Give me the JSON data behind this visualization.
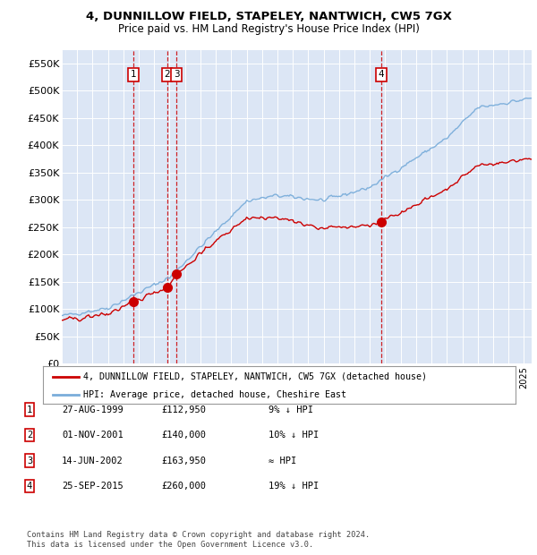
{
  "title": "4, DUNNILLOW FIELD, STAPELEY, NANTWICH, CW5 7GX",
  "subtitle": "Price paid vs. HM Land Registry's House Price Index (HPI)",
  "background_color": "#dce6f5",
  "plot_bg_color": "#dce6f5",
  "ylim": [
    0,
    575000
  ],
  "yticks": [
    0,
    50000,
    100000,
    150000,
    200000,
    250000,
    300000,
    350000,
    400000,
    450000,
    500000,
    550000
  ],
  "ytick_labels": [
    "£0",
    "£50K",
    "£100K",
    "£150K",
    "£200K",
    "£250K",
    "£300K",
    "£350K",
    "£400K",
    "£450K",
    "£500K",
    "£550K"
  ],
  "sale_dates_num": [
    1999.65,
    2001.83,
    2002.45,
    2015.73
  ],
  "sale_prices": [
    112950,
    140000,
    163950,
    260000
  ],
  "sale_labels": [
    "1",
    "2",
    "3",
    "4"
  ],
  "vline_color": "#cc0000",
  "sale_marker_color": "#cc0000",
  "hpi_color": "#7aadda",
  "price_line_color": "#cc0000",
  "legend_property": "4, DUNNILLOW FIELD, STAPELEY, NANTWICH, CW5 7GX (detached house)",
  "legend_hpi": "HPI: Average price, detached house, Cheshire East",
  "table_data": [
    [
      "1",
      "27-AUG-1999",
      "£112,950",
      "9% ↓ HPI"
    ],
    [
      "2",
      "01-NOV-2001",
      "£140,000",
      "10% ↓ HPI"
    ],
    [
      "3",
      "14-JUN-2002",
      "£163,950",
      "≈ HPI"
    ],
    [
      "4",
      "25-SEP-2015",
      "£260,000",
      "19% ↓ HPI"
    ]
  ],
  "footer": "Contains HM Land Registry data © Crown copyright and database right 2024.\nThis data is licensed under the Open Government Licence v3.0.",
  "xmin": 1995.0,
  "xmax": 2025.5
}
